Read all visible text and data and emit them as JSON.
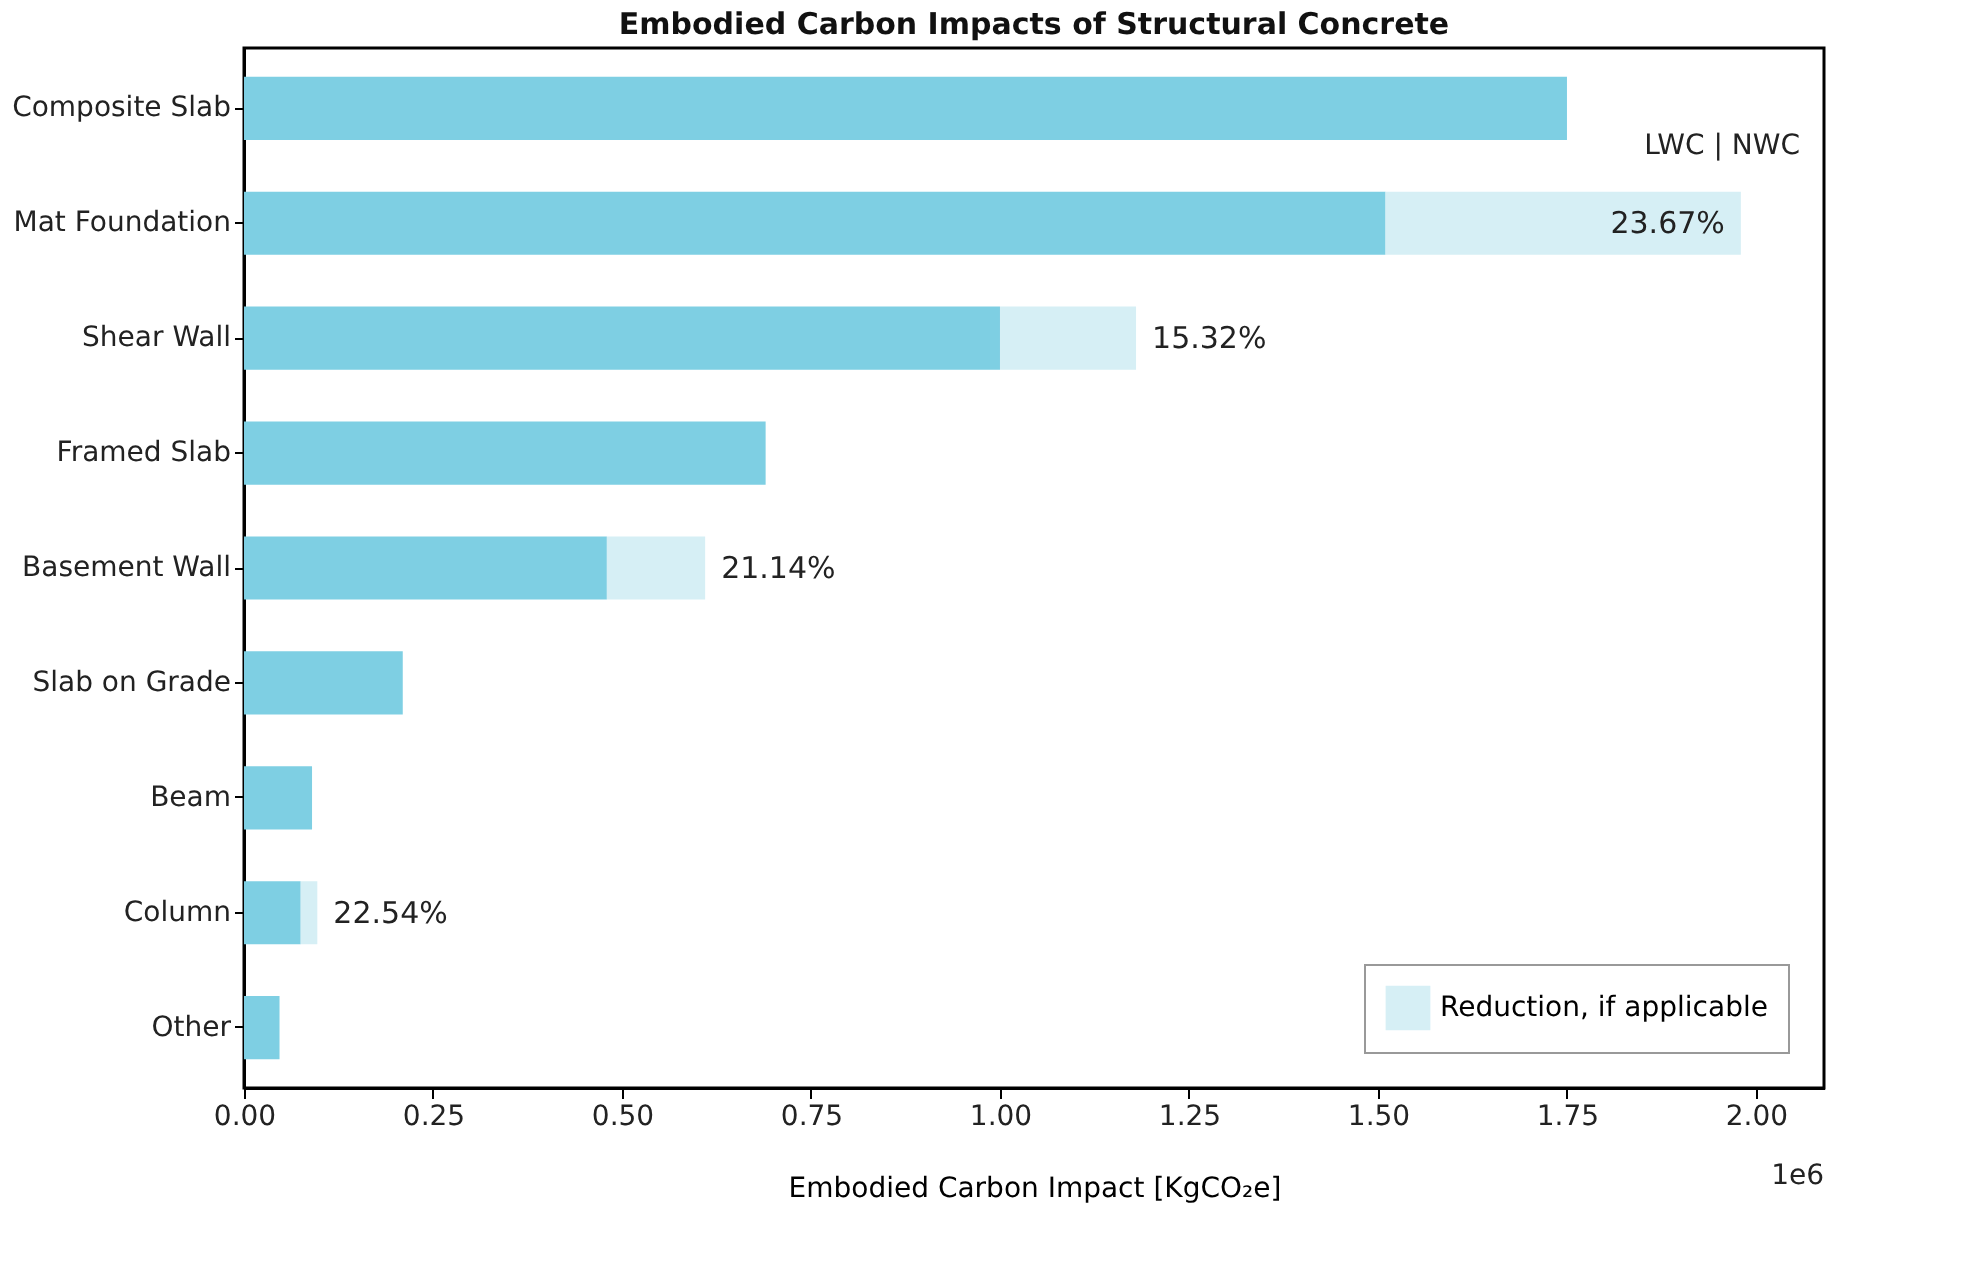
{
  "chart_data": {
    "type": "bar",
    "orientation": "horizontal",
    "stacked": true,
    "title": "Embodied Carbon Impacts of Structural Concrete",
    "xlabel": "Embodied Carbon Impact [KgCO₂e]",
    "categories": [
      "Composite Slab",
      "Mat Foundation",
      "Shear Wall",
      "Framed Slab",
      "Basement Wall",
      "Slab on Grade",
      "Beam",
      "Column",
      "Other"
    ],
    "series": [
      {
        "color": "#7ecfe3",
        "values": [
          1.75,
          1.51,
          1.0,
          0.69,
          0.48,
          0.21,
          0.09,
          0.075,
          0.047
        ]
      },
      {
        "name": "Reduction, if applicable",
        "color": "#d6eff5",
        "values": [
          null,
          0.47,
          0.18,
          null,
          0.13,
          null,
          null,
          0.022,
          null
        ]
      }
    ],
    "xlim": [
      0,
      2.09
    ],
    "xticks": [
      {
        "value": 0,
        "label": "0.00"
      },
      {
        "value": 0.25,
        "label": "0.25"
      },
      {
        "value": 0.5,
        "label": "0.50"
      },
      {
        "value": 0.75,
        "label": "0.75"
      },
      {
        "value": 1,
        "label": "1.00"
      },
      {
        "value": 1.25,
        "label": "1.25"
      },
      {
        "value": 1.5,
        "label": "1.50"
      },
      {
        "value": 1.75,
        "label": "1.75"
      },
      {
        "value": 2,
        "label": "2.00"
      }
    ],
    "annotations": [
      "LWC | NWC",
      "1e6",
      {
        "text": "23.67%",
        "x": 1.98,
        "y": "Mat Foundation"
      },
      {
        "text": "15.32%",
        "x": 1.18,
        "y": "Shear Wall"
      },
      {
        "text": "21.14%",
        "x": 0.61,
        "y": "Basement Wall"
      },
      {
        "text": "22.54%",
        "x": 0.097,
        "y": "Column"
      }
    ],
    "legend": "bottom right"
  }
}
